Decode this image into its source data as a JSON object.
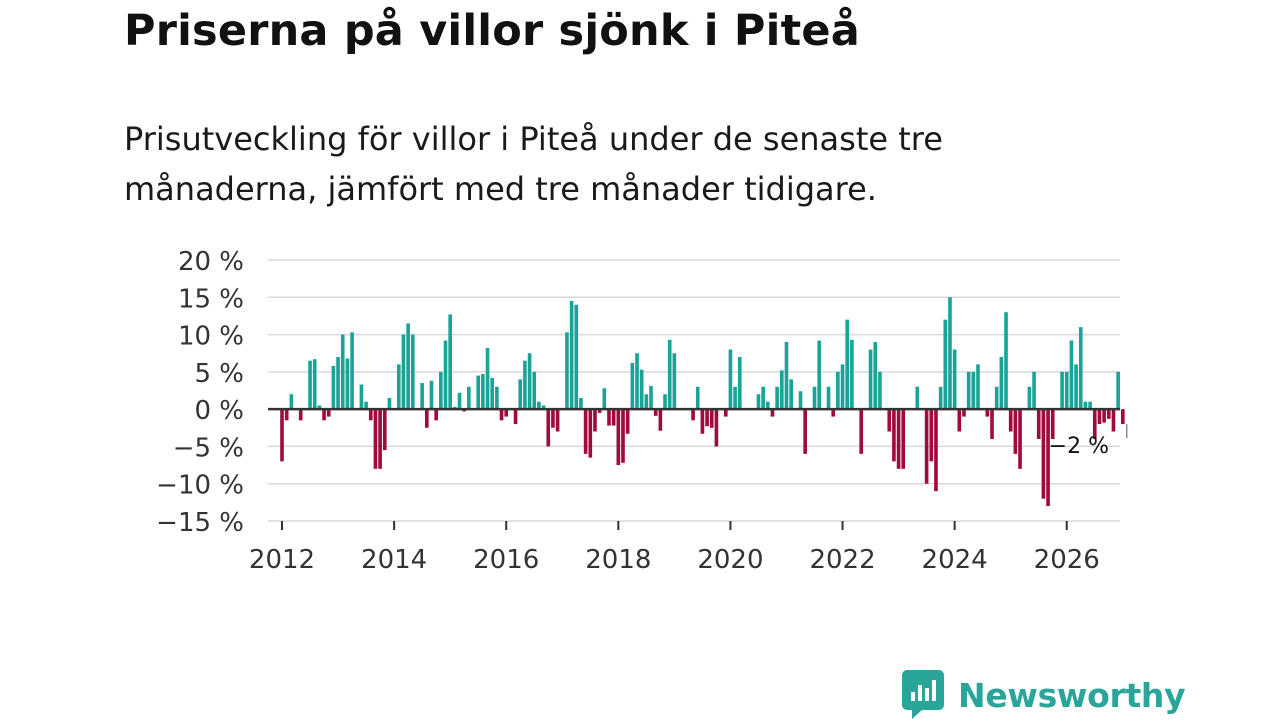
{
  "title": "Priserna på villor sjönk i Piteå",
  "subtitle": "Prisutveckling för villor i Piteå under de senaste tre månaderna, jämfört med tre månader tidigare.",
  "brand": {
    "name": "Newsworthy",
    "color": "#29a59a"
  },
  "colors": {
    "positive": "#1aa497",
    "negative": "#a00b3c",
    "grid": "#d9d9d9",
    "zero": "#333333"
  },
  "chart_data": {
    "type": "bar",
    "title": "",
    "xlabel": "",
    "ylabel": "",
    "ylim": [
      -15,
      20
    ],
    "yticks": [
      20,
      15,
      10,
      5,
      0,
      -5,
      -10,
      -15
    ],
    "ytick_labels": [
      "20 %",
      "15 %",
      "10 %",
      "5 %",
      "0 %",
      "−5 %",
      "−10 %",
      "−15 %"
    ],
    "xlim": [
      2011.75,
      2026.95
    ],
    "xticks": [
      2012,
      2014,
      2016,
      2018,
      2020,
      2022,
      2024,
      2026
    ],
    "xtick_labels": [
      "2012",
      "2014",
      "2016",
      "2018",
      "2020",
      "2022",
      "2024",
      "2026"
    ],
    "last_value_label": "−2 %",
    "series": [
      {
        "name": "Prisutveckling",
        "start_year": 2012,
        "start_month": 1,
        "values": [
          -7,
          -1.5,
          2,
          0,
          -1.5,
          0,
          6.5,
          6.7,
          0.5,
          -1.5,
          -1,
          5.8,
          7,
          10,
          6.8,
          10.3,
          0,
          3.3,
          1,
          -1.5,
          -8,
          -8,
          -5.5,
          1.5,
          0,
          6,
          10,
          11.5,
          10,
          0,
          3.5,
          -2.5,
          3.8,
          -1.5,
          5,
          9.2,
          12.7,
          0.3,
          2.2,
          -0.3,
          3,
          0,
          4.5,
          4.7,
          8.2,
          4.2,
          3,
          -1.5,
          -1,
          0,
          -2,
          4,
          6.5,
          7.5,
          5,
          1,
          0.5,
          -5,
          -2.5,
          -3,
          0,
          10.3,
          14.5,
          14,
          1.5,
          -6,
          -6.5,
          -3,
          -0.5,
          2.8,
          -2.2,
          -2.2,
          -7.5,
          -7.2,
          -3.3,
          6.2,
          7.5,
          5.3,
          2,
          3.1,
          -0.9,
          -2.9,
          2,
          9.3,
          7.5,
          0,
          0,
          0,
          -1.5,
          3,
          -3.3,
          -2.3,
          -2.5,
          -5,
          0,
          -1,
          8,
          3,
          7,
          0,
          0,
          0,
          2,
          3,
          1,
          -1,
          3,
          5.2,
          9,
          4,
          0,
          2.4,
          -6,
          0,
          3,
          9.2,
          0,
          3,
          -1,
          5,
          6,
          12,
          9.3,
          0,
          -6,
          0,
          8,
          9,
          5,
          0,
          -3,
          -7,
          -8,
          -8,
          0,
          0,
          3,
          0,
          -10,
          -7,
          -11,
          3,
          12,
          15,
          8,
          -3,
          -1,
          5,
          5,
          6,
          0,
          -1,
          -4,
          3,
          7,
          13,
          -3,
          -6,
          -8,
          0,
          3,
          5,
          -4,
          -12,
          -13,
          -4,
          0,
          5,
          5,
          9.2,
          6,
          11,
          1,
          1,
          -4,
          -2,
          -1.8,
          -1.3,
          -3,
          5,
          -2
        ]
      }
    ]
  }
}
